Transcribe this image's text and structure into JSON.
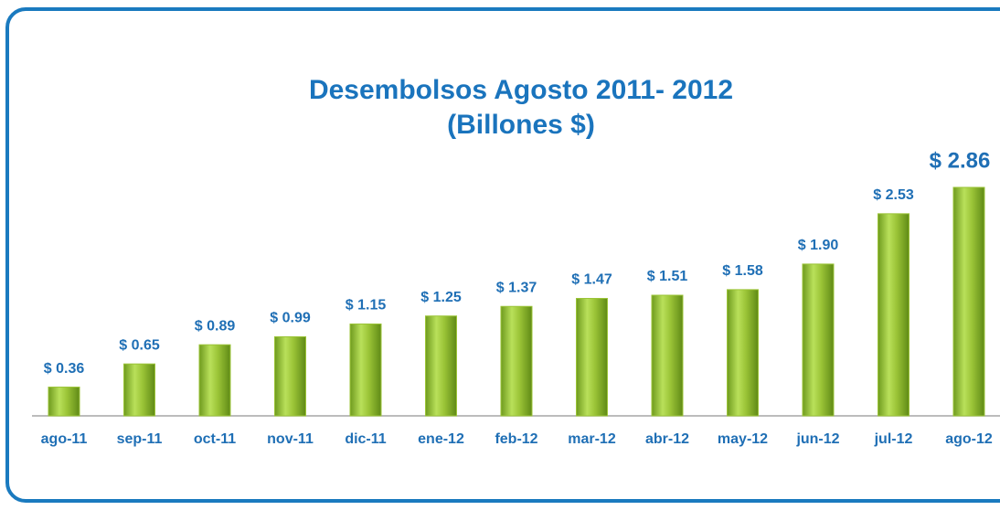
{
  "chart_data": {
    "type": "bar",
    "title": "Desembolsos Agosto 2011- 2012",
    "subtitle": "(Billones $)",
    "categories": [
      "ago-11",
      "sep-11",
      "oct-11",
      "nov-11",
      "dic-11",
      "ene-12",
      "feb-12",
      "mar-12",
      "abr-12",
      "may-12",
      "jun-12",
      "jul-12",
      "ago-12"
    ],
    "values": [
      0.36,
      0.65,
      0.89,
      0.99,
      1.15,
      1.25,
      1.37,
      1.47,
      1.51,
      1.58,
      1.9,
      2.53,
      2.86
    ],
    "value_labels": [
      "$ 0.36",
      "$ 0.65",
      "$ 0.89",
      "$ 0.99",
      "$ 1.15",
      "$ 1.25",
      "$ 1.37",
      "$ 1.47",
      "$ 1.51",
      "$ 1.58",
      "$ 1.90",
      "$ 2.53",
      "$ 2.86"
    ],
    "color": "#9bc437"
  }
}
